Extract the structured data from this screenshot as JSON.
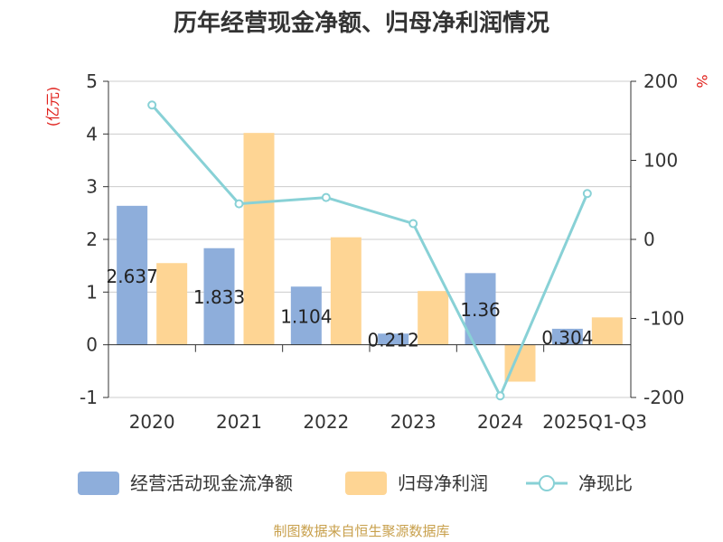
{
  "chart_data": {
    "type": "bar",
    "title": "历年经营现金净额、归母净利润情况",
    "categories": [
      "2020",
      "2021",
      "2022",
      "2023",
      "2024",
      "2025Q1-Q3"
    ],
    "series": [
      {
        "name": "经营活动现金流净额",
        "type": "bar",
        "axis": "left",
        "color": "#8eaedb",
        "values": [
          2.637,
          1.833,
          1.104,
          0.212,
          1.36,
          0.304
        ],
        "labels": [
          "2.637",
          "1.833",
          "1.104",
          "0.212",
          "1.36",
          "0.304"
        ]
      },
      {
        "name": "归母净利润",
        "type": "bar",
        "axis": "left",
        "color": "#fed594",
        "values": [
          1.55,
          4.02,
          2.04,
          1.02,
          -0.7,
          0.52
        ]
      },
      {
        "name": "净现比",
        "type": "line",
        "axis": "right",
        "color": "#88d1d6",
        "values": [
          170,
          45,
          53,
          20,
          -198,
          58
        ]
      }
    ],
    "y_left": {
      "unit": "(亿元)",
      "ylim": [
        -1,
        5
      ],
      "ticks": [
        "-1",
        "0",
        "1",
        "2",
        "3",
        "4",
        "5"
      ]
    },
    "y_right": {
      "unit": "%",
      "ylim": [
        -200,
        200
      ],
      "ticks": [
        "-200",
        "-100",
        "0",
        "100",
        "200"
      ]
    },
    "grid": true,
    "legend": "bottom"
  },
  "footer": "制图数据来自恒生聚源数据库"
}
